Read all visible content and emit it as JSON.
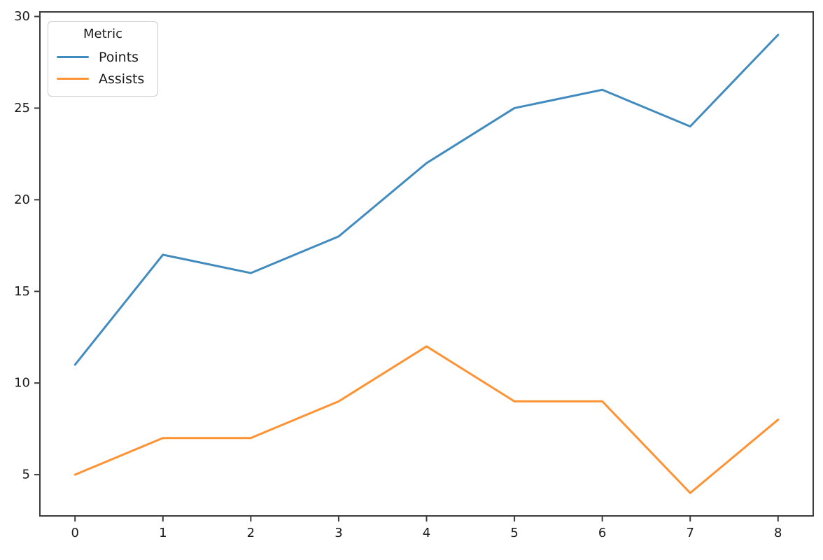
{
  "chart_data": {
    "type": "line",
    "title": "",
    "xlabel": "",
    "ylabel": "",
    "x": [
      0,
      1,
      2,
      3,
      4,
      5,
      6,
      7,
      8
    ],
    "series": [
      {
        "name": "Points",
        "color": "#418bbf",
        "values": [
          11,
          17,
          16,
          18,
          22,
          25,
          26,
          24,
          29
        ]
      },
      {
        "name": "Assists",
        "color": "#ff9233",
        "values": [
          5,
          7,
          7,
          9,
          12,
          9,
          9,
          4,
          8
        ]
      }
    ],
    "xticks": [
      0,
      1,
      2,
      3,
      4,
      5,
      6,
      7,
      8
    ],
    "yticks": [
      5,
      10,
      15,
      20,
      25,
      30
    ],
    "xlim": [
      -0.4,
      8.4
    ],
    "ylim": [
      2.75,
      30.25
    ],
    "grid": false,
    "legend": {
      "title": "Metric",
      "entries": [
        "Points",
        "Assists"
      ],
      "position": "upper-left"
    },
    "spine_color": "#3c3c3c",
    "tick_color": "#3c3c3c",
    "text_color": "#1a1a1a"
  }
}
